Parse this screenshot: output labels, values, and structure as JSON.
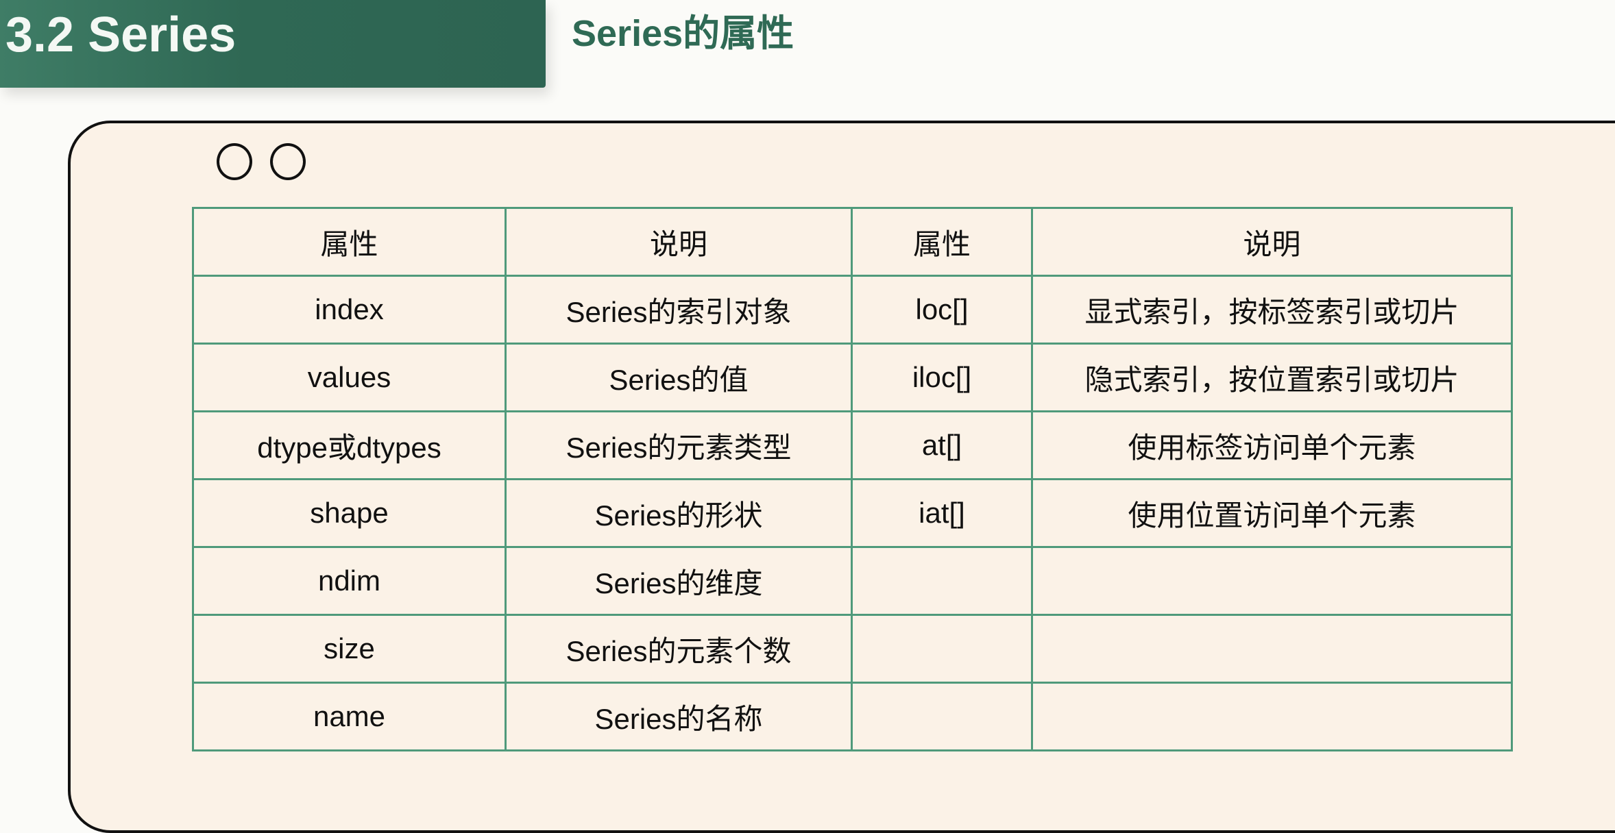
{
  "header": {
    "section_title": "3.2 Series",
    "slide_title": "Series的属性"
  },
  "colors": {
    "banner": "#2f6854",
    "title_green": "#2f6a55",
    "card_bg": "#fbf2e7",
    "table_border": "#4f9a7b"
  },
  "window": {
    "controls": [
      "circle-icon",
      "circle-icon"
    ]
  },
  "table": {
    "headers": [
      "属性",
      "说明",
      "属性",
      "说明"
    ],
    "rows": [
      [
        "index",
        "Series的索引对象",
        "loc[]",
        "显式索引，按标签索引或切片"
      ],
      [
        "values",
        "Series的值",
        "iloc[]",
        "隐式索引，按位置索引或切片"
      ],
      [
        "dtype或dtypes",
        "Series的元素类型",
        "at[]",
        "使用标签访问单个元素"
      ],
      [
        "shape",
        "Series的形状",
        "iat[]",
        "使用位置访问单个元素"
      ],
      [
        "ndim",
        "Series的维度",
        "",
        ""
      ],
      [
        "size",
        "Series的元素个数",
        "",
        ""
      ],
      [
        "name",
        "Series的名称",
        "",
        ""
      ]
    ]
  }
}
